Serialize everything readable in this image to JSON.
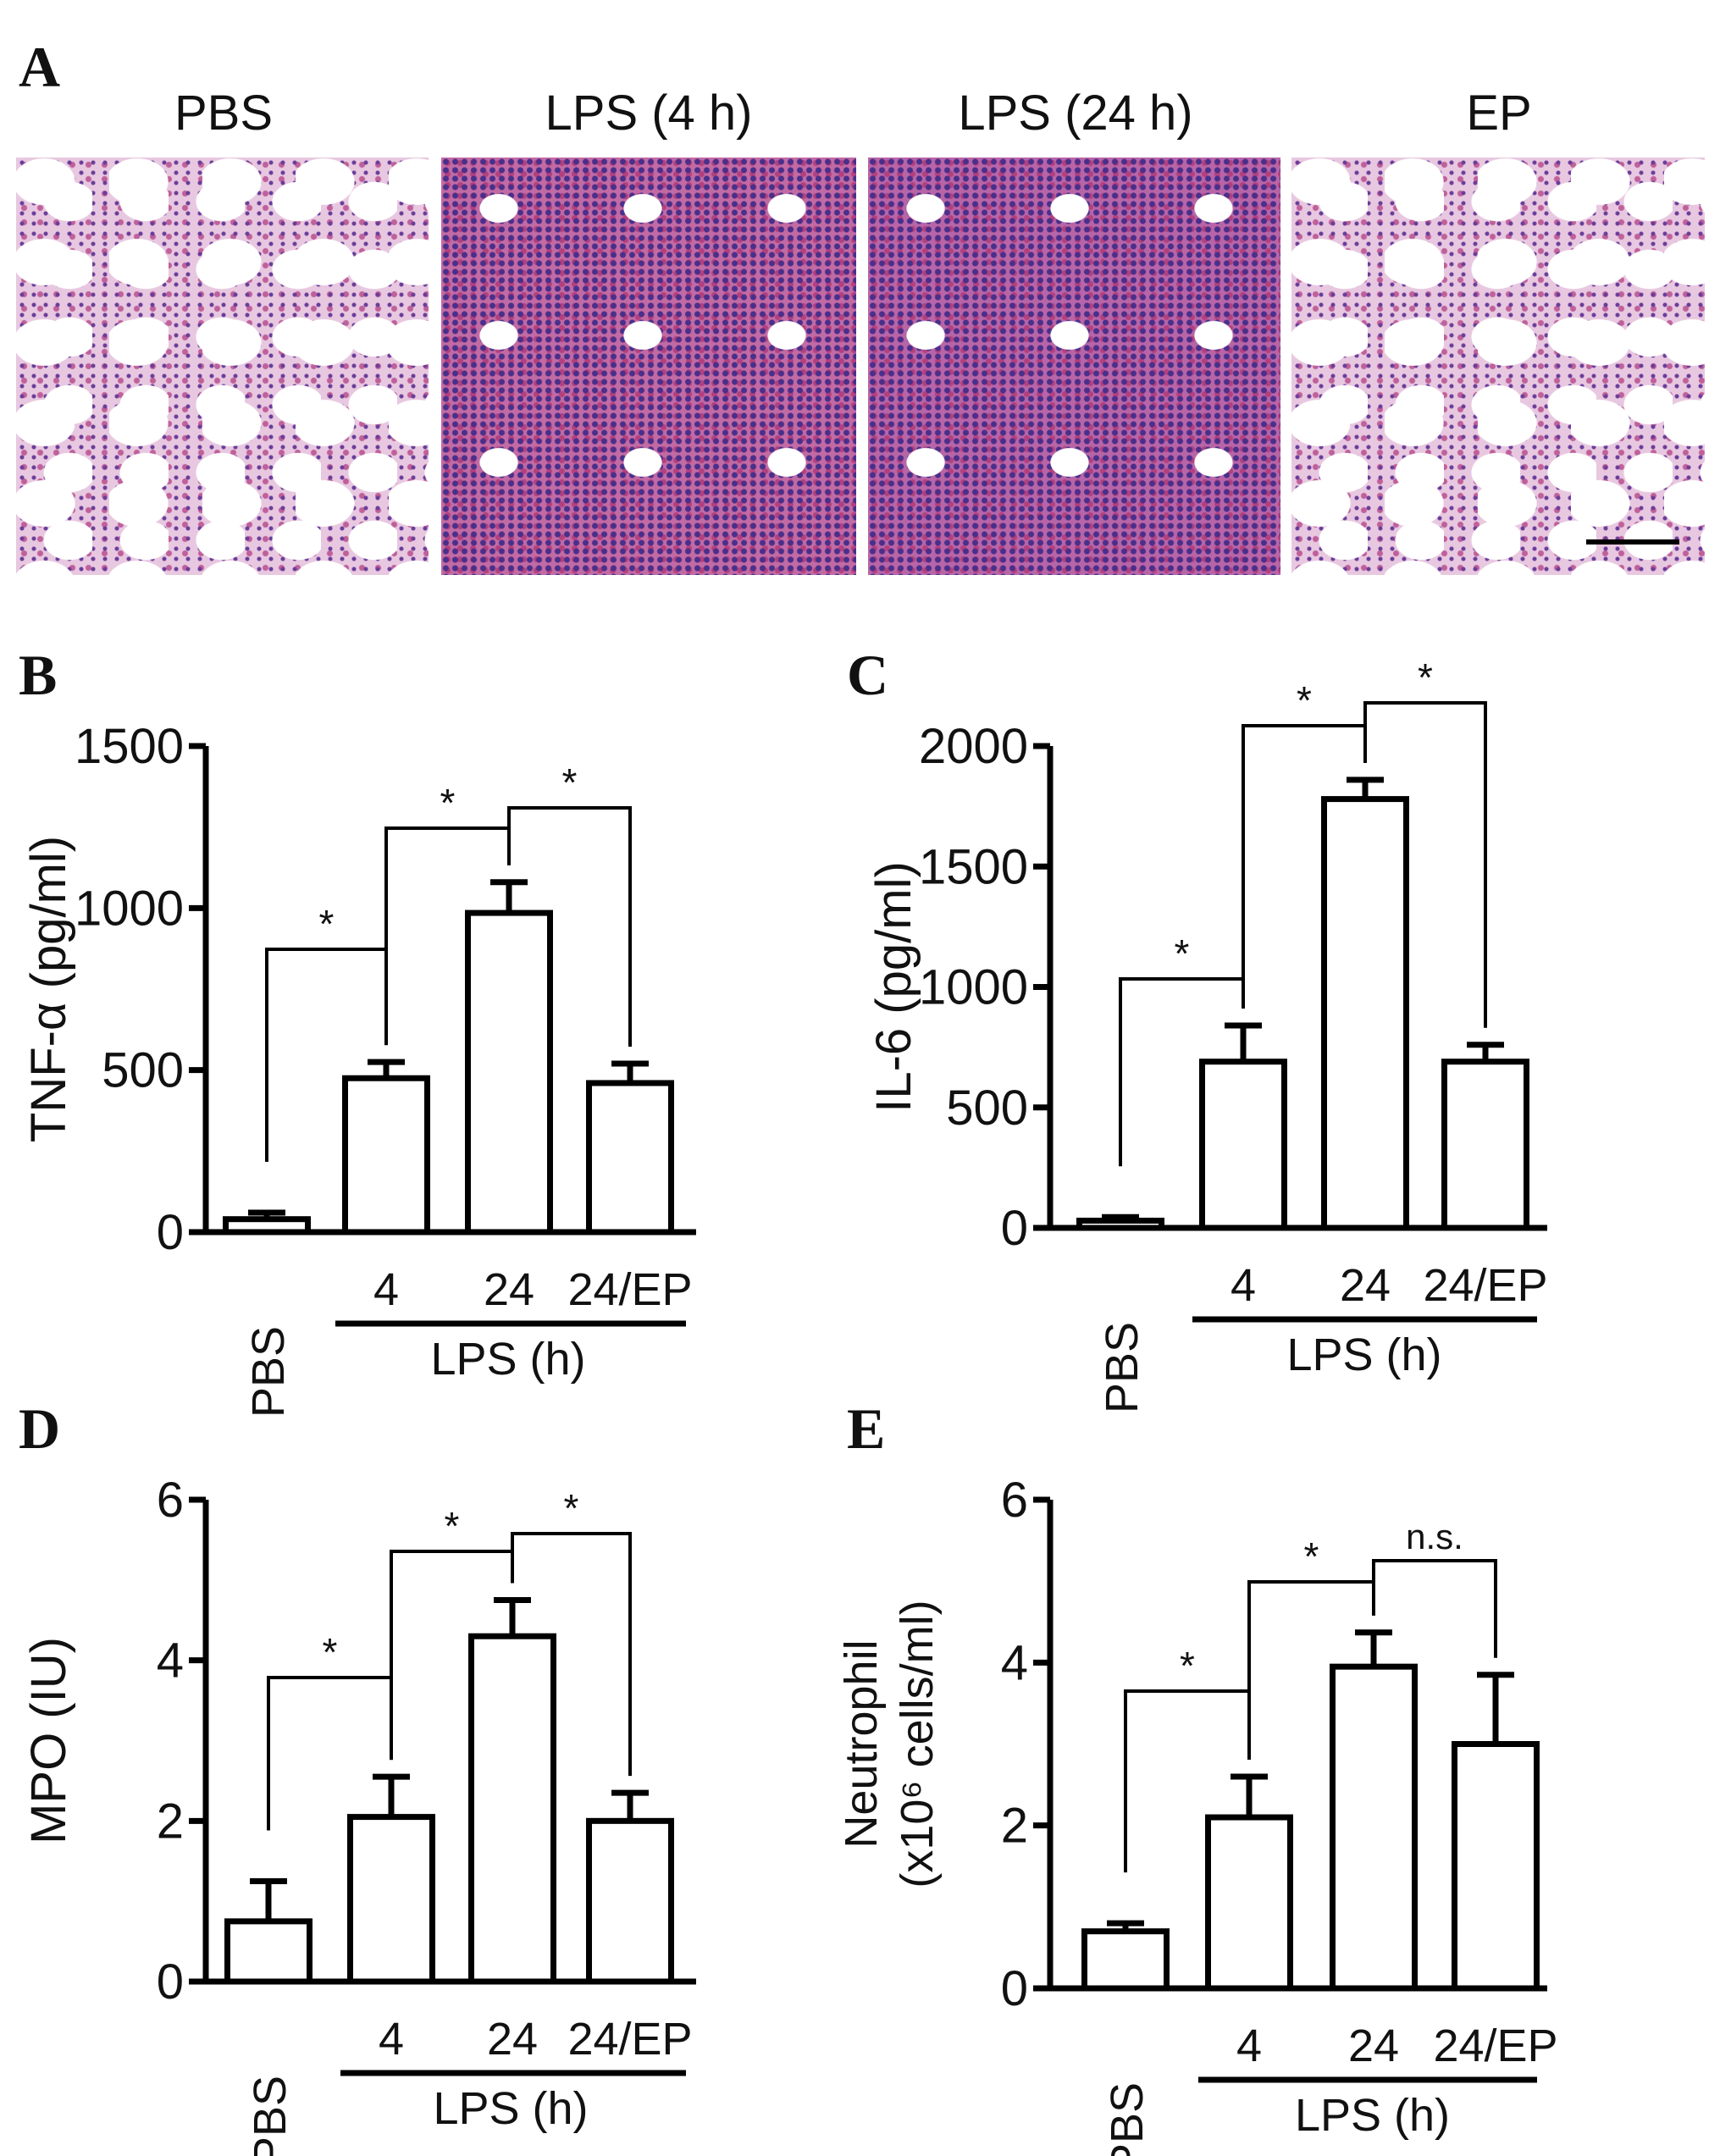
{
  "panel_a": {
    "label": "A",
    "images": [
      {
        "title": "PBS",
        "texture": "sparse"
      },
      {
        "title": "LPS (4 h)",
        "texture": "dense"
      },
      {
        "title": "LPS (24 h)",
        "texture": "dense"
      },
      {
        "title": "EP",
        "texture": "sparse"
      }
    ]
  },
  "chart_data": [
    {
      "panel": "B",
      "type": "bar",
      "ylabel": "TNF-α (pg/ml)",
      "ylim": [
        0,
        1500
      ],
      "yticks": [
        "0",
        "500",
        "1000",
        "1500"
      ],
      "ytick_values": [
        0,
        500,
        1000,
        1500
      ],
      "categories": [
        "PBS",
        "4",
        "24",
        "24/EP"
      ],
      "group_label": "LPS (h)",
      "values": [
        40,
        475,
        985,
        460
      ],
      "errors": [
        20,
        50,
        95,
        60
      ],
      "comparisons": [
        {
          "from": 0,
          "to": 1,
          "label": "*"
        },
        {
          "from": 1,
          "to": 2,
          "label": "*"
        },
        {
          "from": 2,
          "to": 3,
          "label": "*"
        }
      ]
    },
    {
      "panel": "C",
      "type": "bar",
      "ylabel": "IL-6 (pg/ml)",
      "ylim": [
        0,
        2000
      ],
      "yticks": [
        "0",
        "500",
        "1000",
        "1500",
        "2000"
      ],
      "ytick_values": [
        0,
        500,
        1000,
        1500,
        2000
      ],
      "categories": [
        "PBS",
        "4",
        "24",
        "24/EP"
      ],
      "group_label": "LPS (h)",
      "values": [
        30,
        690,
        1780,
        690
      ],
      "errors": [
        15,
        150,
        80,
        70
      ],
      "comparisons": [
        {
          "from": 0,
          "to": 1,
          "label": "*"
        },
        {
          "from": 1,
          "to": 2,
          "label": "*"
        },
        {
          "from": 2,
          "to": 3,
          "label": "*"
        }
      ]
    },
    {
      "panel": "D",
      "type": "bar",
      "ylabel": "MPO (IU)",
      "ylim": [
        0,
        6
      ],
      "yticks": [
        "0",
        "2",
        "4",
        "6"
      ],
      "ytick_values": [
        0,
        2,
        4,
        6
      ],
      "categories": [
        "PBS",
        "4",
        "24",
        "24/EP"
      ],
      "group_label": "LPS (h)",
      "values": [
        0.75,
        2.05,
        4.3,
        2.0
      ],
      "errors": [
        0.5,
        0.5,
        0.45,
        0.35
      ],
      "comparisons": [
        {
          "from": 0,
          "to": 1,
          "label": "*"
        },
        {
          "from": 1,
          "to": 2,
          "label": "*"
        },
        {
          "from": 2,
          "to": 3,
          "label": "*"
        }
      ]
    },
    {
      "panel": "E",
      "type": "bar",
      "ylabel": "Neutrophil",
      "ylabel2": "(x10⁶ cells/ml)",
      "ylim": [
        0,
        6
      ],
      "yticks": [
        "0",
        "2",
        "4",
        "6"
      ],
      "ytick_values": [
        0,
        2,
        4,
        6
      ],
      "categories": [
        "PBS",
        "4",
        "24",
        "24/EP"
      ],
      "group_label": "LPS (h)",
      "values": [
        0.7,
        2.1,
        3.95,
        3.0
      ],
      "errors": [
        0.1,
        0.5,
        0.42,
        0.85
      ],
      "comparisons": [
        {
          "from": 0,
          "to": 1,
          "label": "*"
        },
        {
          "from": 1,
          "to": 2,
          "label": "*"
        },
        {
          "from": 2,
          "to": 3,
          "label": "n.s."
        }
      ]
    }
  ]
}
